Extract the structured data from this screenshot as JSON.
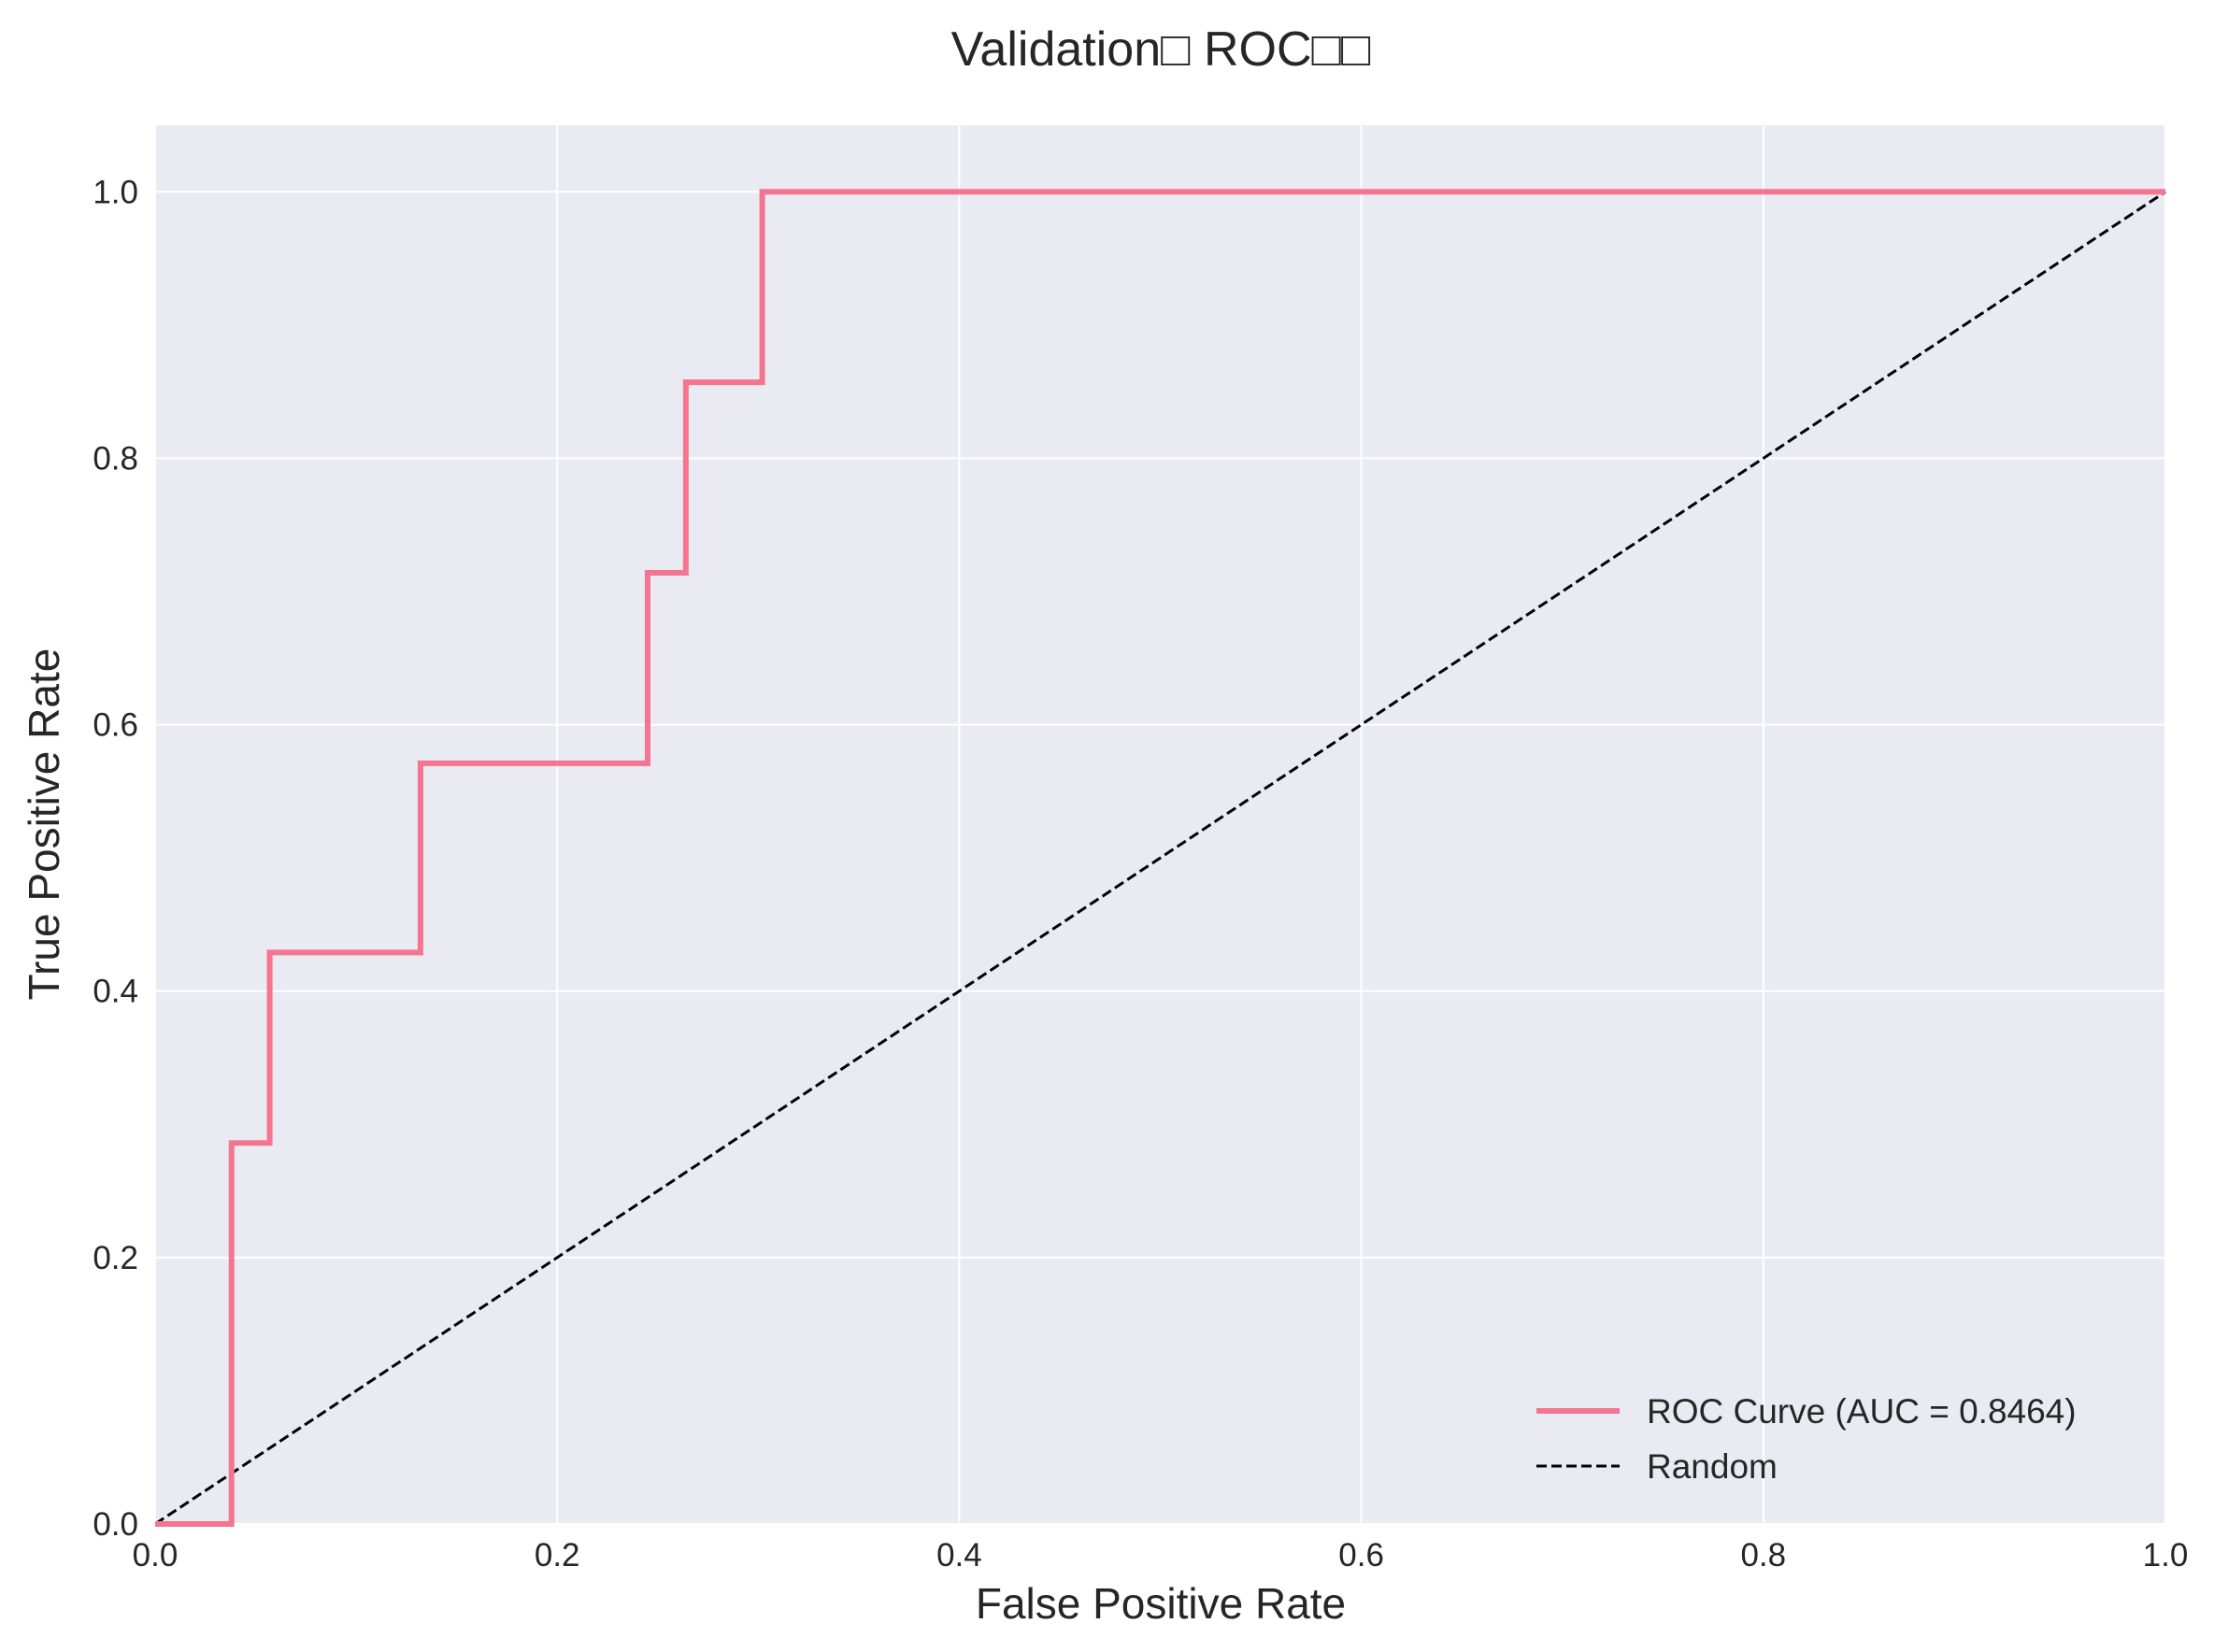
{
  "chart_data": {
    "type": "line",
    "title": "Validation□ ROC□□",
    "xlabel": "False Positive Rate",
    "ylabel": "True Positive Rate",
    "xlim": [
      0.0,
      1.0
    ],
    "ylim": [
      0.0,
      1.05
    ],
    "xticks": [
      0.0,
      0.2,
      0.4,
      0.6,
      0.8,
      1.0
    ],
    "xtick_labels": [
      "0.0",
      "0.2",
      "0.4",
      "0.6",
      "0.8",
      "1.0"
    ],
    "yticks": [
      0.0,
      0.2,
      0.4,
      0.6,
      0.8,
      1.0
    ],
    "ytick_labels": [
      "0.0",
      "0.2",
      "0.4",
      "0.6",
      "0.8",
      "1.0"
    ],
    "grid": true,
    "legend_position": "lower-right",
    "background_color": "#eaeaf2",
    "series": [
      {
        "name": "ROC Curve (AUC = 0.8464)",
        "color": "#f37590",
        "style": "solid",
        "x": [
          0.0,
          0.038,
          0.038,
          0.057,
          0.057,
          0.132,
          0.132,
          0.245,
          0.245,
          0.264,
          0.264,
          0.302,
          0.302,
          1.0
        ],
        "y": [
          0.0,
          0.0,
          0.286,
          0.286,
          0.429,
          0.429,
          0.571,
          0.571,
          0.714,
          0.714,
          0.857,
          0.857,
          1.0,
          1.0
        ]
      },
      {
        "name": "Random",
        "color": "#000000",
        "style": "dashed",
        "x": [
          0.0,
          1.0
        ],
        "y": [
          0.0,
          1.0
        ]
      }
    ]
  }
}
